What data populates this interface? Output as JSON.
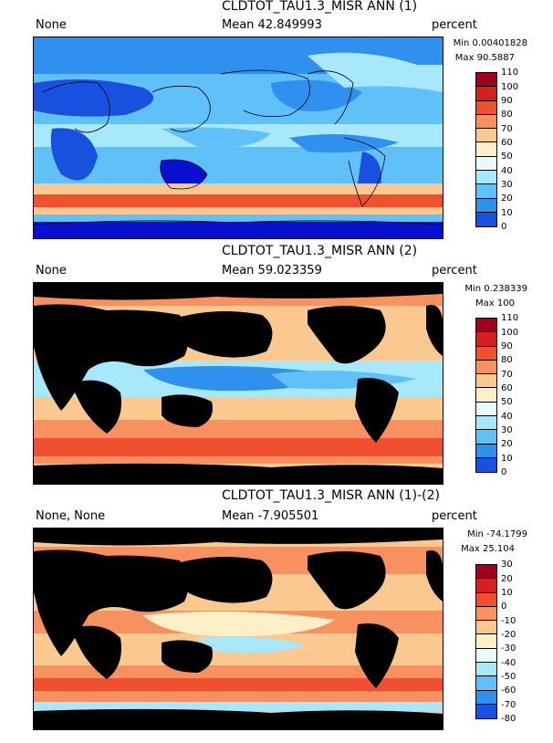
{
  "panels": [
    {
      "title": "CLDTOT_TAU1.3_MISR ANN (1)",
      "left_label": "None",
      "mean": "Mean 42.849993",
      "units": "percent",
      "min": "Min 0.00401828",
      "max": "Max 90.5887",
      "colorbar_ticks": [
        "110",
        "100",
        "90",
        "80",
        "70",
        "60",
        "50",
        "40",
        "30",
        "20",
        "10",
        "0"
      ],
      "colorbar_colors": [
        "#a00020",
        "#d42020",
        "#f05030",
        "#f89060",
        "#fbc890",
        "#fdf0c8",
        "#e8fafa",
        "#a8e8fc",
        "#60c0f8",
        "#3090f0",
        "#1850e0",
        "#0a10d0"
      ],
      "land_masked": false
    },
    {
      "title": "CLDTOT_TAU1.3_MISR ANN (2)",
      "left_label": "None",
      "mean": "Mean 59.023359",
      "units": "percent",
      "min": "Min 0.238339",
      "max": "Max 100",
      "colorbar_ticks": [
        "110",
        "100",
        "90",
        "80",
        "70",
        "60",
        "50",
        "40",
        "30",
        "20",
        "10",
        "0"
      ],
      "colorbar_colors": [
        "#a00020",
        "#d42020",
        "#f05030",
        "#f89060",
        "#fbc890",
        "#fdf0c8",
        "#e8fafa",
        "#a8e8fc",
        "#60c0f8",
        "#3090f0",
        "#1850e0",
        "#0a10d0"
      ],
      "land_masked": true
    },
    {
      "title": "CLDTOT_TAU1.3_MISR ANN (1)-(2)",
      "left_label": "None, None",
      "mean": "Mean -7.905501",
      "units": "percent",
      "min": "Min -74.1799",
      "max": "Max 25.104",
      "colorbar_ticks": [
        "30",
        "20",
        "10",
        "0",
        "-10",
        "-20",
        "-30",
        "-40",
        "-50",
        "-60",
        "-70",
        "-80"
      ],
      "colorbar_colors": [
        "#a00020",
        "#d42020",
        "#f05030",
        "#f89060",
        "#fbc890",
        "#fdf0c8",
        "#e8fafa",
        "#a8e8fc",
        "#60c0f8",
        "#3090f0",
        "#1850e0",
        "#0a10d0"
      ],
      "land_masked": true
    }
  ],
  "colors": {
    "land_mask": "#000000"
  }
}
